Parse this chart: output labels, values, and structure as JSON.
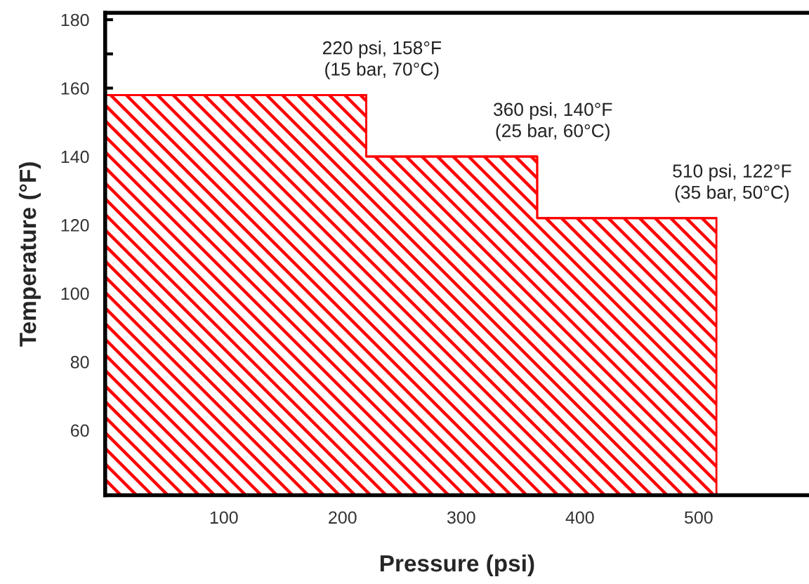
{
  "chart_data": {
    "type": "area",
    "xlabel": "Pressure (psi)",
    "ylabel": "Temperature (°F)",
    "x": [
      0,
      220,
      220,
      364,
      364,
      515
    ],
    "series": [
      {
        "color": "#ff0000",
        "values": [
          158,
          158,
          140,
          140,
          122,
          122
        ]
      }
    ],
    "xlim": [
      0,
      593
    ],
    "ylim": [
      41,
      182
    ],
    "xticks": [
      100,
      200,
      300,
      400,
      500
    ],
    "yticks": [
      {
        "value": 50,
        "label": null
      },
      60,
      {
        "value": 70,
        "label": null
      },
      80,
      {
        "value": 90,
        "label": null
      },
      100,
      {
        "value": 110,
        "label": null
      },
      120,
      {
        "value": 130,
        "label": null
      },
      140,
      {
        "value": 150,
        "label": null
      },
      160,
      {
        "value": 170,
        "label": null
      },
      180
    ],
    "annotations": [
      {
        "text": "220 psi, 158°F\n(15 bar, 70°C)",
        "x": 220,
        "y": 158
      },
      {
        "text": "360 psi, 140°F\n(25 bar, 60°C)",
        "x": 364,
        "y": 140
      },
      {
        "text": "510 psi, 122°F\n(35 bar, 50°C)",
        "x": 515,
        "y": 122
      }
    ],
    "grid": false,
    "legend": false
  }
}
